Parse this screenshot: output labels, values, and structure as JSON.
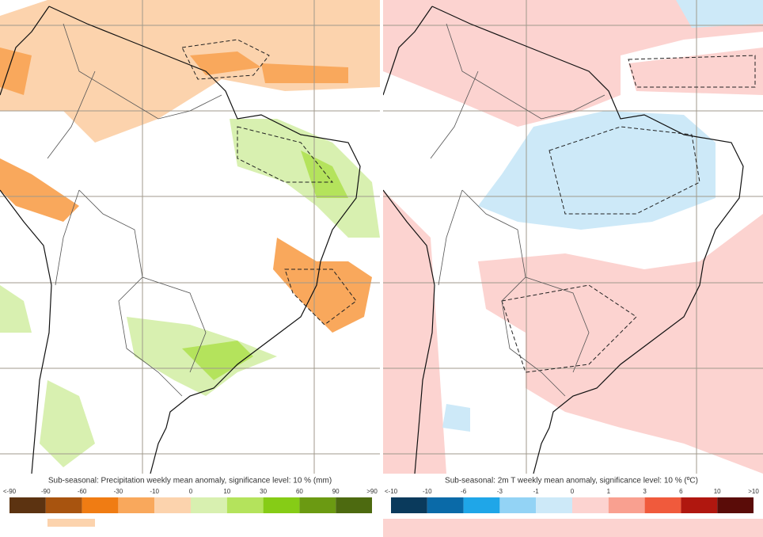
{
  "panels": [
    {
      "caption": "Sub-seasonal: Precipitation weekly mean anomaly, significance level: 10 % (mm)",
      "colorbar": {
        "labels": [
          "<-90",
          "-90",
          "-60",
          "-30",
          "-10",
          "0",
          "10",
          "30",
          "60",
          "90",
          ">90"
        ],
        "colors": [
          "#5c3311",
          "#a8540f",
          "#f07c13",
          "#f9a85c",
          "#fcd3ad",
          "#d8f0b0",
          "#b4e35c",
          "#86cc16",
          "#6b9a12",
          "#4d6a10"
        ]
      }
    },
    {
      "caption": "Sub-seasonal: 2m T weekly mean anomaly, significance level: 10 % (ºC)",
      "colorbar": {
        "labels": [
          "<-10",
          "-10",
          "-6",
          "-3",
          "-1",
          "0",
          "1",
          "3",
          "6",
          "10",
          ">10"
        ],
        "colors": [
          "#0a3a5c",
          "#0a6aa8",
          "#1fa6e8",
          "#93d3f5",
          "#cde9f8",
          "#fcd3d0",
          "#f9a090",
          "#f05a3c",
          "#b0170f",
          "#5a0c08"
        ]
      }
    }
  ]
}
